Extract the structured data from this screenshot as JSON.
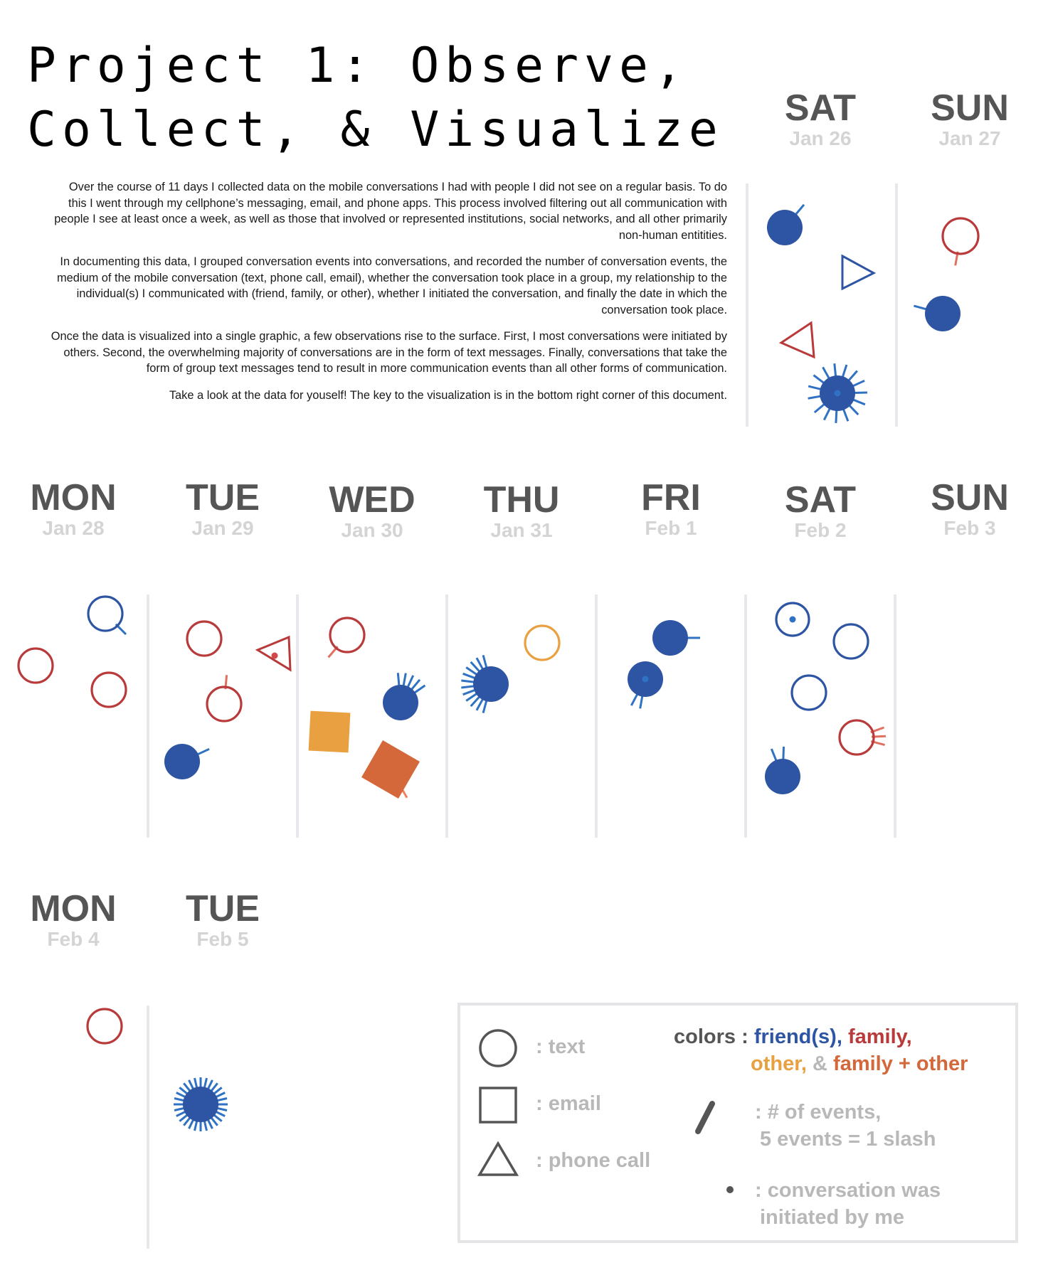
{
  "title": {
    "line1": "Project 1: Observe,",
    "line2": "Collect, & Visualize"
  },
  "intro": [
    "Over the course of 11 days I collected data on the mobile conversations I had with people I did not see on a regular basis. To do this I went through my cellphone’s messaging, email, and phone apps. This process involved filtering out all communication with people I see at least once a week, as well as those that involved or represented institutions, social networks, and all other primarily non-human entitities.",
    "In documenting this data, I grouped conversation events into conversations, and recorded the number of conversation events, the medium of the mobile conversation (text, phone call, email), whether the conversation took place in a group, my relationship to the individual(s) I communicated with (friend, family, or other), whether I initiated the conversation, and finally the date in which the conversation took place.",
    "Once the data is visualized into a single graphic, a few observations rise to the surface. First, I most conversations were initiated by others. Second, the overwhelming majority of conversations are in the form of text messages. Finally, conversations that take the form of group text messages tend to result in more communication events than all other forms of communication.",
    "Take a look at the data for youself! The key to the visualization is in the bottom right corner of this document."
  ],
  "days": [
    {
      "name": "SAT",
      "date": "Jan 26"
    },
    {
      "name": "SUN",
      "date": "Jan 27"
    },
    {
      "name": "MON",
      "date": "Jan 28"
    },
    {
      "name": "TUE",
      "date": "Jan 29"
    },
    {
      "name": "WED",
      "date": "Jan 30"
    },
    {
      "name": "THU",
      "date": "Jan 31"
    },
    {
      "name": "FRI",
      "date": "Feb 1"
    },
    {
      "name": "SAT",
      "date": "Feb 2"
    },
    {
      "name": "SUN",
      "date": "Feb 3"
    },
    {
      "name": "MON",
      "date": "Feb 4"
    },
    {
      "name": "TUE",
      "date": "Feb 5"
    }
  ],
  "colors": {
    "friend": "#2d55a3",
    "family": "#b83a3a",
    "other": "#e8a040",
    "family_other": "#d4683a",
    "events_friend": "#2f72c4",
    "events_family": "#e07060",
    "events_other": "#f08060",
    "legend_gray": "#b8b8b8",
    "legend_dark": "#555555"
  },
  "chart_data": {
    "type": "glyph-calendar",
    "conversations": [
      {
        "day": "Jan 26",
        "medium": "text",
        "relation": "friend",
        "filled": true,
        "events": 5,
        "initiated_by_me": false
      },
      {
        "day": "Jan 26",
        "medium": "phone call",
        "relation": "friend",
        "filled": false,
        "events": 0,
        "initiated_by_me": false
      },
      {
        "day": "Jan 26",
        "medium": "phone call",
        "relation": "family",
        "filled": false,
        "events": 0,
        "initiated_by_me": false
      },
      {
        "day": "Jan 26",
        "medium": "text",
        "relation": "friend",
        "filled": true,
        "events": 75,
        "initiated_by_me": true
      },
      {
        "day": "Jan 27",
        "medium": "text",
        "relation": "family",
        "filled": false,
        "events": 5,
        "initiated_by_me": false
      },
      {
        "day": "Jan 27",
        "medium": "text",
        "relation": "friend",
        "filled": true,
        "events": 5,
        "initiated_by_me": false
      },
      {
        "day": "Jan 28",
        "medium": "text",
        "relation": "friend",
        "filled": false,
        "events": 5,
        "initiated_by_me": false
      },
      {
        "day": "Jan 28",
        "medium": "text",
        "relation": "family",
        "filled": false,
        "events": 0,
        "initiated_by_me": false
      },
      {
        "day": "Jan 28",
        "medium": "text",
        "relation": "family",
        "filled": false,
        "events": 0,
        "initiated_by_me": false
      },
      {
        "day": "Jan 29",
        "medium": "text",
        "relation": "family",
        "filled": false,
        "events": 0,
        "initiated_by_me": false
      },
      {
        "day": "Jan 29",
        "medium": "phone call",
        "relation": "family",
        "filled": false,
        "events": 0,
        "initiated_by_me": true
      },
      {
        "day": "Jan 29",
        "medium": "text",
        "relation": "family",
        "filled": false,
        "events": 5,
        "initiated_by_me": false
      },
      {
        "day": "Jan 29",
        "medium": "text",
        "relation": "friend",
        "filled": true,
        "events": 5,
        "initiated_by_me": false
      },
      {
        "day": "Jan 30",
        "medium": "text",
        "relation": "family",
        "filled": false,
        "events": 5,
        "initiated_by_me": false
      },
      {
        "day": "Jan 30",
        "medium": "text",
        "relation": "friend",
        "filled": true,
        "events": 25,
        "initiated_by_me": false
      },
      {
        "day": "Jan 30",
        "medium": "email",
        "relation": "other",
        "filled": true,
        "events": 0,
        "initiated_by_me": false
      },
      {
        "day": "Jan 30",
        "medium": "email",
        "relation": "family + other",
        "filled": true,
        "events": 5,
        "initiated_by_me": false
      },
      {
        "day": "Jan 31",
        "medium": "text",
        "relation": "other",
        "filled": false,
        "events": 0,
        "initiated_by_me": false
      },
      {
        "day": "Jan 31",
        "medium": "text",
        "relation": "friend",
        "filled": true,
        "events": 60,
        "initiated_by_me": false
      },
      {
        "day": "Feb 1",
        "medium": "text",
        "relation": "friend",
        "filled": true,
        "events": 5,
        "initiated_by_me": false
      },
      {
        "day": "Feb 1",
        "medium": "text",
        "relation": "friend",
        "filled": true,
        "events": 10,
        "initiated_by_me": true
      },
      {
        "day": "Feb 2",
        "medium": "text",
        "relation": "friend",
        "filled": false,
        "events": 0,
        "initiated_by_me": true
      },
      {
        "day": "Feb 2",
        "medium": "text",
        "relation": "friend",
        "filled": false,
        "events": 0,
        "initiated_by_me": false
      },
      {
        "day": "Feb 2",
        "medium": "text",
        "relation": "friend",
        "filled": false,
        "events": 0,
        "initiated_by_me": false
      },
      {
        "day": "Feb 2",
        "medium": "text",
        "relation": "family",
        "filled": false,
        "events": 15,
        "initiated_by_me": false
      },
      {
        "day": "Feb 2",
        "medium": "text",
        "relation": "friend",
        "filled": true,
        "events": 10,
        "initiated_by_me": false
      },
      {
        "day": "Feb 4",
        "medium": "text",
        "relation": "family",
        "filled": false,
        "events": 0,
        "initiated_by_me": false
      },
      {
        "day": "Feb 5",
        "medium": "text",
        "relation": "friend",
        "filled": true,
        "events": 140,
        "initiated_by_me": false
      }
    ]
  },
  "legend": {
    "text_label": ": text",
    "email_label": ": email",
    "phone_label": ": phone call",
    "colors_label": "colors :",
    "friend_label": "friend(s),",
    "family_label": "family,",
    "other_label": "other,",
    "and_label": "&",
    "family_other_label": "family + other",
    "events_line1": ": # of events,",
    "events_line2": "5 events = 1 slash",
    "initiated_line1": ": conversation was",
    "initiated_line2": "initiated by me"
  }
}
